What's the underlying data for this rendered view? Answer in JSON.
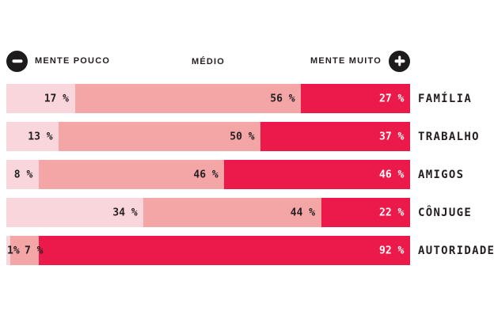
{
  "header": {
    "left_label": "MENTE POUCO",
    "center_label": "MÉDIO",
    "right_label": "MENTE MUITO"
  },
  "colors": {
    "segment_low": "#f9d6dc",
    "segment_mid": "#f4a5a6",
    "segment_high": "#ec1a4a",
    "value_text_dark": "#231f20",
    "value_text_on_high": "#ffffff",
    "icon_background": "#1d1b1c"
  },
  "chart_data": {
    "type": "bar",
    "orientation": "horizontal",
    "stacked": true,
    "unit": "%",
    "xlim": [
      0,
      100
    ],
    "legend_position": "top",
    "series_names": [
      "Mente pouco",
      "Médio",
      "Mente muito"
    ],
    "categories": [
      "FAMÍLIA",
      "TRABALHO",
      "AMIGOS",
      "CÔNJUGE",
      "AUTORIDADES"
    ],
    "rows": [
      {
        "category": "FAMÍLIA",
        "values": [
          17,
          56,
          27
        ],
        "value_labels": [
          "17 %",
          "56 %",
          "27 %"
        ]
      },
      {
        "category": "TRABALHO",
        "values": [
          13,
          50,
          37
        ],
        "value_labels": [
          "13 %",
          "50 %",
          "37 %"
        ]
      },
      {
        "category": "AMIGOS",
        "values": [
          8,
          46,
          46
        ],
        "value_labels": [
          "8 %",
          "46 %",
          "46 %"
        ]
      },
      {
        "category": "CÔNJUGE",
        "values": [
          34,
          44,
          22
        ],
        "value_labels": [
          "34 %",
          "44 %",
          "22 %"
        ]
      },
      {
        "category": "AUTORIDADES",
        "values": [
          1,
          7,
          92
        ],
        "value_labels": [
          "1%",
          "7 %",
          "92 %"
        ]
      }
    ]
  }
}
